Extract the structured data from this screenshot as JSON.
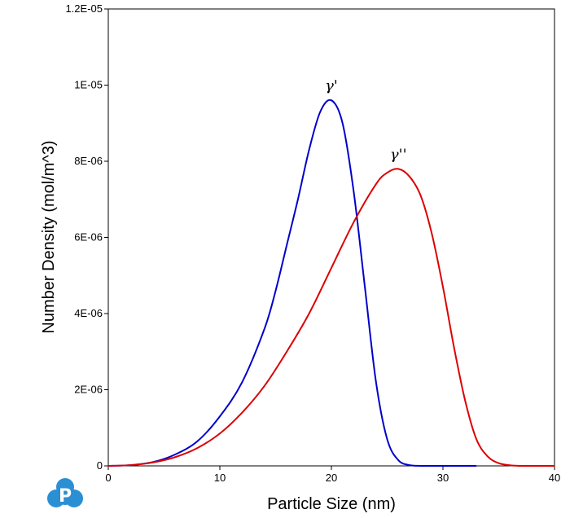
{
  "chart_data": {
    "type": "line",
    "title": "",
    "xlabel": "Particle Size (nm)",
    "ylabel": "Number Density (mol/m^3)",
    "xlim": [
      0,
      40
    ],
    "ylim": [
      0,
      1.2e-05
    ],
    "x_ticks": [
      0,
      10,
      20,
      30,
      40
    ],
    "x_tick_labels": [
      "0",
      "10",
      "20",
      "30",
      "40"
    ],
    "y_ticks": [
      0,
      2e-06,
      4e-06,
      6e-06,
      8e-06,
      1e-05,
      1.2e-05
    ],
    "y_tick_labels": [
      "0",
      "2E-06",
      "4E-06",
      "6E-06",
      "8E-06",
      "1E-05",
      "1.2E-05"
    ],
    "grid": false,
    "legend": "none",
    "annotations": [
      {
        "text": "γ'",
        "series": "gamma-prime"
      },
      {
        "text": "γ''",
        "series": "gamma-double-prime"
      }
    ],
    "series": [
      {
        "color": "#0000cc",
        "x": [
          0,
          2,
          4,
          6,
          8,
          10,
          12,
          14,
          15,
          16,
          17,
          18,
          19,
          20,
          21,
          22,
          23,
          24,
          25,
          26,
          27,
          28,
          30,
          33
        ],
        "y": [
          0,
          2e-08,
          1e-07,
          3e-07,
          6.5e-07,
          1.3e-06,
          2.2e-06,
          3.6e-06,
          4.6e-06,
          5.8e-06,
          7e-06,
          8.3e-06,
          9.3e-06,
          9.6e-06,
          9e-06,
          7.2e-06,
          4.7e-06,
          2.2e-06,
          7e-07,
          1.5e-07,
          2e-08,
          0,
          0,
          0
        ]
      },
      {
        "color": "#dd0000",
        "x": [
          0,
          2,
          4,
          6,
          8,
          10,
          12,
          14,
          16,
          18,
          20,
          22,
          24,
          25,
          26,
          27,
          28,
          29,
          30,
          31,
          32,
          33,
          34,
          35,
          36,
          37,
          38,
          40
        ],
        "y": [
          0,
          2e-08,
          9e-08,
          2.3e-07,
          4.7e-07,
          8.5e-07,
          1.4e-06,
          2.1e-06,
          3e-06,
          4e-06,
          5.2e-06,
          6.4e-06,
          7.4e-06,
          7.7e-06,
          7.8e-06,
          7.6e-06,
          7.1e-06,
          6.1e-06,
          4.7e-06,
          3.1e-06,
          1.7e-06,
          7e-07,
          2.5e-07,
          7e-08,
          1.5e-08,
          0,
          0,
          0
        ]
      }
    ]
  },
  "logo": {
    "letter": "P",
    "color": "#2b8fd4"
  }
}
